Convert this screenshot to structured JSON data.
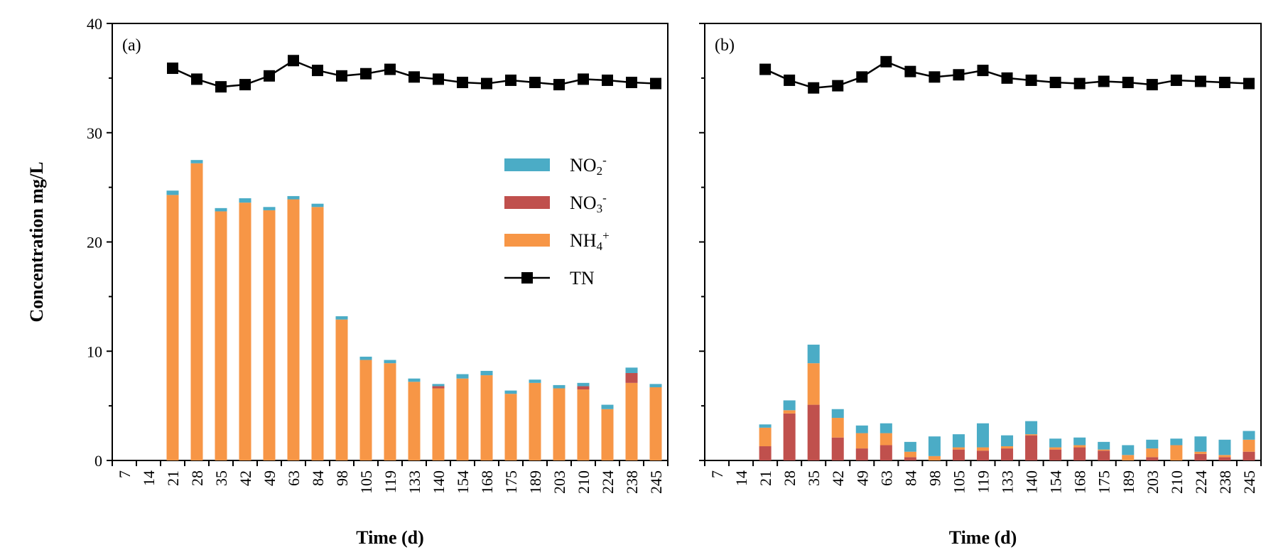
{
  "chart_data": [
    {
      "type": "bar",
      "panel_label": "(a)",
      "stacked": true,
      "categories": [
        "7",
        "14",
        "21",
        "28",
        "35",
        "42",
        "49",
        "63",
        "84",
        "98",
        "105",
        "119",
        "133",
        "140",
        "154",
        "168",
        "175",
        "189",
        "203",
        "210",
        "224",
        "238",
        "245"
      ],
      "series": [
        {
          "name": "NH4+",
          "color": "#F79646",
          "values": [
            0,
            0,
            24.3,
            27.2,
            22.8,
            23.6,
            22.9,
            23.9,
            23.2,
            12.9,
            9.2,
            8.9,
            7.2,
            6.6,
            7.5,
            7.8,
            6.1,
            7.1,
            6.6,
            6.5,
            4.7,
            7.1,
            6.7
          ]
        },
        {
          "name": "NO3-",
          "color": "#C0504D",
          "values": [
            0,
            0,
            0,
            0,
            0,
            0,
            0,
            0,
            0,
            0,
            0,
            0,
            0,
            0.2,
            0,
            0,
            0,
            0,
            0,
            0.3,
            0,
            0.9,
            0
          ]
        },
        {
          "name": "NO2-",
          "color": "#4BACC6",
          "values": [
            0,
            0,
            0.4,
            0.3,
            0.3,
            0.4,
            0.3,
            0.3,
            0.3,
            0.3,
            0.3,
            0.3,
            0.3,
            0.2,
            0.4,
            0.4,
            0.3,
            0.3,
            0.3,
            0.3,
            0.4,
            0.5,
            0.3
          ]
        }
      ],
      "line_series": {
        "name": "TN",
        "color": "#000000",
        "values": [
          null,
          null,
          35.9,
          34.9,
          34.2,
          34.4,
          35.2,
          36.6,
          35.7,
          35.2,
          35.4,
          35.8,
          35.1,
          34.9,
          34.6,
          34.5,
          34.8,
          34.6,
          34.4,
          34.9,
          34.8,
          34.6,
          34.5
        ]
      },
      "xlabel": "Time (d)",
      "ylabel": "Concentration mg/L",
      "ylim": [
        0,
        40
      ],
      "yticks": [
        0,
        10,
        20,
        30,
        40
      ],
      "legend": {
        "placement": "middle-right",
        "items": [
          {
            "base": "NO",
            "sub": "2",
            "sup": "-",
            "color": "#4BACC6",
            "kind": "bar"
          },
          {
            "base": "NO",
            "sub": "3",
            "sup": "-",
            "color": "#C0504D",
            "kind": "bar"
          },
          {
            "base": "NH",
            "sub": "4",
            "sup": "+",
            "color": "#F79646",
            "kind": "bar"
          },
          {
            "base": "TN",
            "sub": "",
            "sup": "",
            "color": "#000000",
            "kind": "line"
          }
        ]
      }
    },
    {
      "type": "bar",
      "panel_label": "(b)",
      "stacked": true,
      "categories": [
        "7",
        "14",
        "21",
        "28",
        "35",
        "42",
        "49",
        "63",
        "84",
        "98",
        "105",
        "119",
        "133",
        "140",
        "154",
        "168",
        "175",
        "189",
        "203",
        "210",
        "224",
        "238",
        "245"
      ],
      "series": [
        {
          "name": "NO3-",
          "color": "#C0504D",
          "values": [
            0,
            0,
            1.3,
            4.3,
            5.1,
            2.1,
            1.1,
            1.4,
            0.3,
            0,
            1.0,
            0.9,
            1.1,
            2.3,
            1.0,
            1.2,
            0.9,
            0,
            0.3,
            0,
            0.6,
            0.3,
            0.8
          ]
        },
        {
          "name": "NH4+",
          "color": "#F79646",
          "values": [
            0,
            0,
            1.7,
            0.3,
            3.8,
            1.8,
            1.4,
            1.1,
            0.5,
            0.4,
            0.2,
            0.3,
            0.2,
            0.1,
            0.2,
            0.2,
            0.1,
            0.5,
            0.8,
            1.4,
            0.2,
            0.2,
            1.1
          ]
        },
        {
          "name": "NO2-",
          "color": "#4BACC6",
          "values": [
            0,
            0,
            0.3,
            0.9,
            1.7,
            0.8,
            0.7,
            0.9,
            0.9,
            1.8,
            1.2,
            2.2,
            1.0,
            1.2,
            0.8,
            0.7,
            0.7,
            0.9,
            0.8,
            0.6,
            1.4,
            1.4,
            0.8
          ]
        }
      ],
      "line_series": {
        "name": "TN",
        "color": "#000000",
        "values": [
          null,
          null,
          35.8,
          34.8,
          34.1,
          34.3,
          35.1,
          36.5,
          35.6,
          35.1,
          35.3,
          35.7,
          35.0,
          34.8,
          34.6,
          34.5,
          34.7,
          34.6,
          34.4,
          34.8,
          34.7,
          34.6,
          34.5
        ]
      },
      "xlabel": "Time (d)",
      "ylabel": "",
      "ylim": [
        0,
        40
      ],
      "yticks": [
        0,
        10,
        20,
        30,
        40
      ],
      "show_ytick_labels": false
    }
  ]
}
